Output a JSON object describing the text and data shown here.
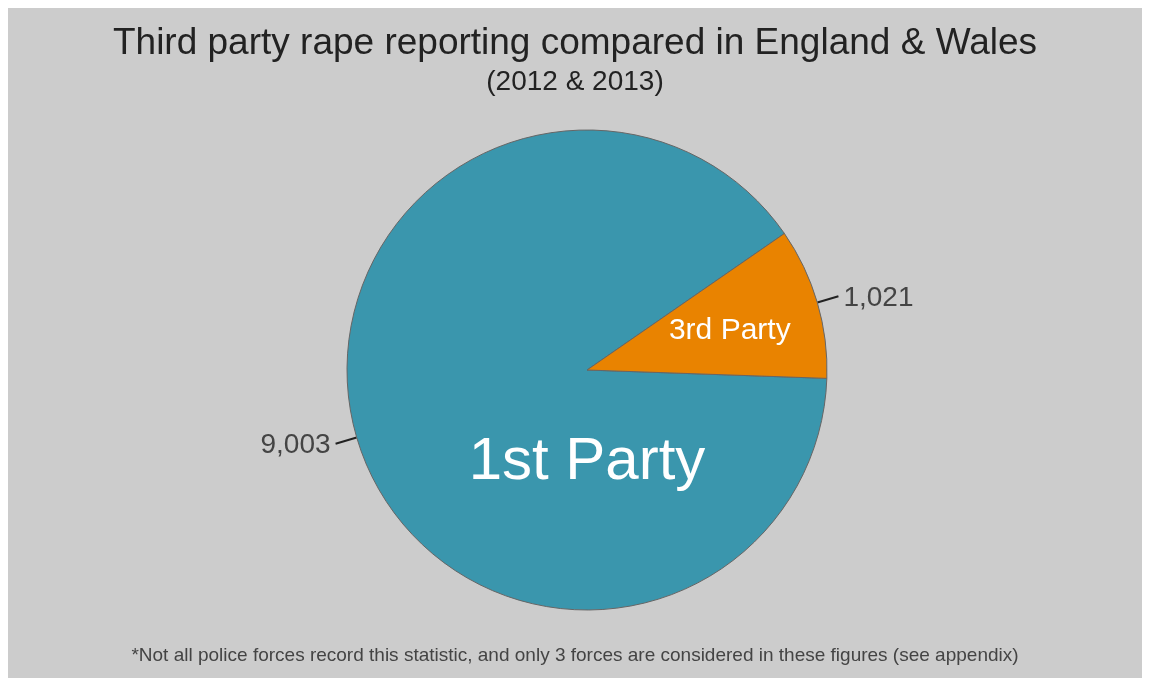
{
  "chart_data": {
    "type": "pie",
    "title": "Third party rape reporting compared in England & Wales",
    "subtitle": "(2012 & 2013)",
    "categories": [
      "1st Party",
      "3rd Party"
    ],
    "values": [
      9003,
      1021
    ],
    "value_labels": [
      "9,003",
      "1,021"
    ],
    "colors": [
      "#3a96ad",
      "#e98300"
    ],
    "annotations": [
      "*Not all police forces record this statistic, and only 3 forces are considered in these figures (see appendix)"
    ],
    "legend": false
  }
}
